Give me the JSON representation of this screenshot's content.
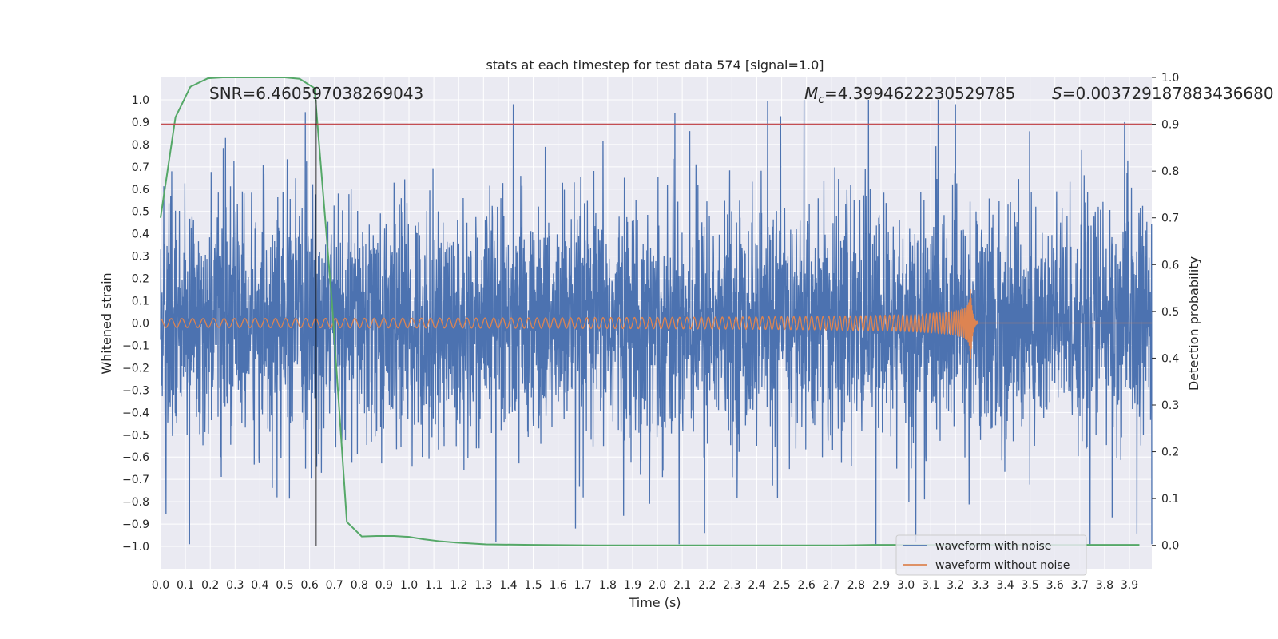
{
  "chart_data": {
    "type": "line",
    "title": "stats at each timestep for test data 574 [signal=1.0]",
    "xlabel": "Time (s)",
    "ylabel_left": "Whitened strain",
    "ylabel_right": "Detection probability",
    "xlim": [
      0.0,
      3.99
    ],
    "ylim_left": [
      -1.1,
      1.1
    ],
    "ylim_right": [
      -0.05,
      1.0
    ],
    "x_ticks": [
      0.0,
      0.1,
      0.2,
      0.3,
      0.4,
      0.5,
      0.6,
      0.7,
      0.8,
      0.9,
      1.0,
      1.1,
      1.2,
      1.3,
      1.4,
      1.5,
      1.6,
      1.7,
      1.8,
      1.9,
      2.0,
      2.1,
      2.2,
      2.3,
      2.4,
      2.5,
      2.6,
      2.7,
      2.8,
      2.9,
      3.0,
      3.1,
      3.2,
      3.3,
      3.4,
      3.5,
      3.6,
      3.7,
      3.8,
      3.9
    ],
    "x_tick_labels": [
      "0.0",
      "0.1",
      "0.2",
      "0.3",
      "0.4",
      "0.5",
      "0.6",
      "0.7",
      "0.8",
      "0.9",
      "1.0",
      "1.1",
      "1.2",
      "1.3",
      "1.4",
      "1.5",
      "1.6",
      "1.7",
      "1.8",
      "1.9",
      "2.0",
      "2.1",
      "2.2",
      "2.3",
      "2.4",
      "2.5",
      "2.6",
      "2.7",
      "2.8",
      "2.9",
      "3.0",
      "3.1",
      "3.2",
      "3.3",
      "3.4",
      "3.5",
      "3.6",
      "3.7",
      "3.8",
      "3.9"
    ],
    "y_left_ticks": [
      1.0,
      0.9,
      0.8,
      0.7,
      0.6,
      0.5,
      0.4,
      0.3,
      0.2,
      0.1,
      0.0,
      -0.1,
      -0.2,
      -0.3,
      -0.4,
      -0.5,
      -0.6,
      -0.7,
      -0.8,
      -0.9,
      -1.0
    ],
    "y_left_tick_labels": [
      "1.0",
      "0.9",
      "0.8",
      "0.7",
      "0.6",
      "0.5",
      "0.4",
      "0.3",
      "0.2",
      "0.1",
      "0.0",
      "−0.1",
      "−0.2",
      "−0.3",
      "−0.4",
      "−0.5",
      "−0.6",
      "−0.7",
      "−0.8",
      "−0.9",
      "−1.0"
    ],
    "y_right_ticks": [
      1.0,
      0.9,
      0.8,
      0.7,
      0.6,
      0.5,
      0.4,
      0.3,
      0.2,
      0.1,
      0.0
    ],
    "y_right_tick_labels": [
      "1.0",
      "0.9",
      "0.8",
      "0.7",
      "0.6",
      "0.5",
      "0.4",
      "0.3",
      "0.2",
      "0.1",
      "0.0"
    ],
    "threshold": {
      "value": 0.9,
      "axis": "right",
      "color": "#c44e52"
    },
    "vertical_marker": {
      "x": 0.625,
      "y_from": -1.0,
      "y_to": 1.0,
      "color": "#000000"
    },
    "annotations": {
      "snr": "SNR=6.460597038269043",
      "mc_symbol": "M",
      "mc_sub": "c",
      "mc_value": "=4.3994622230529785",
      "s_symbol": "S",
      "s_value": "=0.003729187883436680"
    },
    "series": [
      {
        "name": "waveform with noise",
        "axis": "left",
        "color": "#4c72b0",
        "kind": "noise",
        "approx_envelope": [
          -0.95,
          1.0
        ],
        "notable_peaks": [
          {
            "x": 1.42,
            "y": 0.98
          },
          {
            "x": 2.85,
            "y": 1.0
          },
          {
            "x": 3.2,
            "y": 0.98
          },
          {
            "x": 3.88,
            "y": 0.9
          },
          {
            "x": 2.07,
            "y": 0.94
          },
          {
            "x": 2.13,
            "y": 0.86
          },
          {
            "x": 1.35,
            "y": -0.98
          },
          {
            "x": 2.88,
            "y": -0.99
          },
          {
            "x": 3.04,
            "y": -0.98
          },
          {
            "x": 2.19,
            "y": -0.94
          },
          {
            "x": 1.67,
            "y": -0.92
          },
          {
            "x": 3.83,
            "y": -0.87
          }
        ]
      },
      {
        "name": "waveform without noise",
        "axis": "left",
        "color": "#dd8452",
        "kind": "chirp",
        "start_amplitude": 0.02,
        "end_amplitude": 0.19,
        "merger_time": 3.26,
        "ringdown_end": 3.29
      },
      {
        "name": "",
        "axis": "right",
        "color": "#55a868",
        "kind": "detection",
        "x": [
          0.0,
          0.06,
          0.12,
          0.19,
          0.25,
          0.31,
          0.37,
          0.44,
          0.5,
          0.56,
          0.62,
          0.69,
          0.75,
          0.81,
          0.87,
          0.94,
          1.0,
          1.06,
          1.12,
          1.19,
          1.25,
          1.31,
          1.5,
          1.75,
          2.0,
          2.25,
          2.5,
          2.75,
          2.87,
          3.0,
          3.25,
          3.5,
          3.75,
          3.94
        ],
        "values": [
          0.7,
          0.915,
          0.98,
          0.998,
          1.0,
          1.0,
          1.0,
          1.0,
          1.0,
          0.997,
          0.977,
          0.52,
          0.05,
          0.019,
          0.02,
          0.02,
          0.018,
          0.013,
          0.009,
          0.006,
          0.004,
          0.002,
          0.001,
          0.0,
          0.0,
          0.0,
          0.0,
          0.0,
          0.001,
          0.001,
          0.001,
          0.001,
          0.001,
          0.001
        ]
      }
    ],
    "legend": [
      {
        "label": "waveform with noise",
        "color": "#4c72b0"
      },
      {
        "label": "waveform without noise",
        "color": "#dd8452"
      }
    ],
    "legend_position": "lower-right"
  }
}
